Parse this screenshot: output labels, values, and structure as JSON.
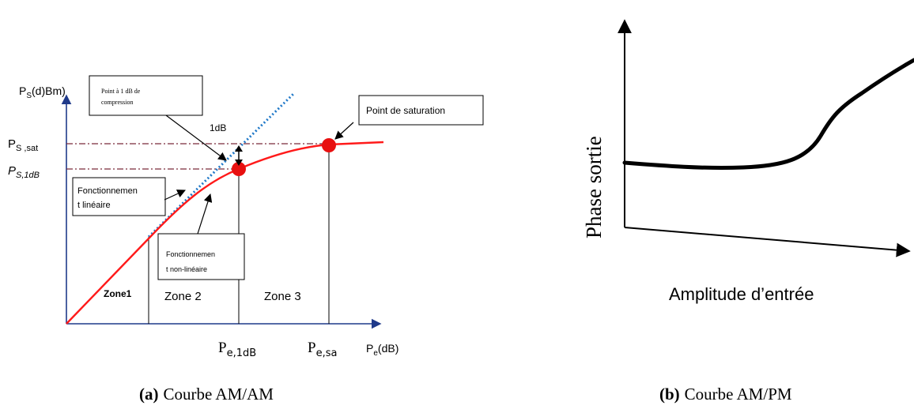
{
  "figure_a": {
    "y_axis_label": "P",
    "y_axis_label_sub": "S",
    "y_axis_label_rest": "(d)Bm)",
    "x_axis_label": "P",
    "x_axis_label_sub": "e",
    "x_axis_label_rest": "(dB)",
    "ps_sat_main": "P",
    "ps_sat_sub": "S ,sat",
    "ps_1db_main": "P",
    "ps_1db_sub": "S,1dB",
    "pe_1db_main": "P",
    "pe_1db_sub": "e,1dB",
    "pe_sat_main": "P",
    "pe_sat_sub": "e,sa",
    "delta_label": "1dB",
    "callout_compression": [
      "Point  à 1 dB de",
      "compression"
    ],
    "callout_saturation": "Point de  saturation",
    "callout_linear": [
      "Fonctionnemen",
      "t linéaire"
    ],
    "callout_nonlinear": [
      "Fonctionnemen",
      "t non-linéaire"
    ],
    "zone1": "Zone1",
    "zone2": "Zone 2",
    "zone3": "Zone 3",
    "caption_prefix": "(a)",
    "caption_text": "Courbe AM/AM"
  },
  "figure_b": {
    "y_axis_label": "Phase sortie",
    "x_axis_label": "Amplitude d’entrée",
    "caption_prefix": "(b)",
    "caption_text": "Courbe AM/PM"
  },
  "colors": {
    "curve": "#ff1a1a",
    "linear_asymptote": "#1f78c8",
    "reference_lines": "#7a2a3a",
    "marker": "#e81010",
    "axis": "#000000"
  }
}
